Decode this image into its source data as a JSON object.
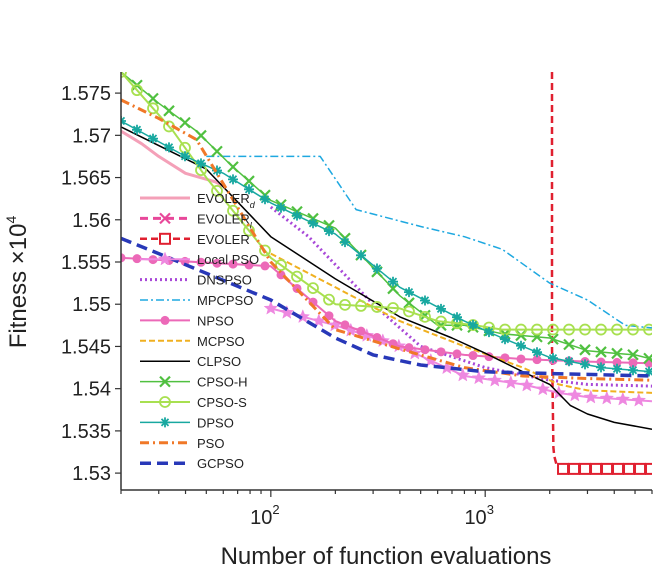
{
  "chart_data": {
    "type": "line",
    "title": "",
    "xlabel": "Number of function evaluations",
    "ylabel": "Fitness ×10",
    "ylabel_exponent": "4",
    "xscale": "log",
    "xlim": [
      20,
      6000
    ],
    "ylim": [
      1.528,
      1.5775
    ],
    "x_ticks": [
      {
        "value": 100,
        "base": "10",
        "exp": "2"
      },
      {
        "value": 1000,
        "base": "10",
        "exp": "3"
      }
    ],
    "y_ticks": [
      {
        "value": 1.53,
        "label": "1.53"
      },
      {
        "value": 1.535,
        "label": "1.535"
      },
      {
        "value": 1.54,
        "label": "1.54"
      },
      {
        "value": 1.545,
        "label": "1.545"
      },
      {
        "value": 1.55,
        "label": "1.55"
      },
      {
        "value": 1.555,
        "label": "1.555"
      },
      {
        "value": 1.56,
        "label": "1.56"
      },
      {
        "value": 1.565,
        "label": "1.565"
      },
      {
        "value": 1.57,
        "label": "1.57"
      },
      {
        "value": 1.575,
        "label": "1.575"
      }
    ],
    "legend_position": "left",
    "series": [
      {
        "name": "EVOLER",
        "sub": "d",
        "color": "#f4a0b8",
        "width": 3,
        "dash": "",
        "marker": "none",
        "x": [
          20,
          25,
          30,
          40,
          55,
          60
        ],
        "y": [
          1.5705,
          1.569,
          1.5675,
          1.5655,
          1.5645,
          1.564
        ]
      },
      {
        "name": "EVOLER",
        "sub": "l",
        "color": "#e8489a",
        "width": 3,
        "dash": "8 5",
        "marker": "x",
        "x": [],
        "y": []
      },
      {
        "name": "EVOLER",
        "sub": "",
        "color": "#e02030",
        "width": 2.5,
        "dash": "7 4",
        "marker": "square",
        "x": [
          2050,
          2050,
          2080,
          2100,
          2150,
          2300,
          2600,
          3000,
          3500,
          4000,
          4500,
          5000,
          5500,
          6000
        ],
        "y": [
          1.5775,
          1.545,
          1.533,
          1.532,
          1.531,
          1.5305,
          1.5305,
          1.5305,
          1.5305,
          1.5305,
          1.5305,
          1.5305,
          1.5305,
          1.5305
        ]
      },
      {
        "name": "Local PSO",
        "sub": "",
        "color": "#ee88e0",
        "width": 2,
        "dash": "",
        "marker": "star",
        "x": [
          100,
          200,
          400,
          800,
          1500,
          2200,
          3000,
          4000,
          6000
        ],
        "y": [
          1.5495,
          1.5475,
          1.545,
          1.5415,
          1.5405,
          1.5395,
          1.539,
          1.5388,
          1.5385
        ]
      },
      {
        "name": "DNSPSO",
        "sub": "",
        "color": "#a848d8",
        "width": 3,
        "dash": "2 3",
        "marker": "none",
        "x": [
          100,
          150,
          300,
          500,
          1000,
          2000,
          3000,
          6000
        ],
        "y": [
          1.5615,
          1.558,
          1.55,
          1.545,
          1.5425,
          1.541,
          1.5405,
          1.5403
        ]
      },
      {
        "name": "MPCPSO",
        "sub": "",
        "color": "#1ea8e0",
        "width": 1.5,
        "dash": "8 3 2 3",
        "marker": "none",
        "x": [
          50,
          170,
          250,
          500,
          800,
          1200,
          2000,
          3000,
          4500,
          6000
        ],
        "y": [
          1.5675,
          1.5675,
          1.5612,
          1.5592,
          1.558,
          1.5565,
          1.5525,
          1.5505,
          1.5475,
          1.5472
        ]
      },
      {
        "name": "NPSO",
        "sub": "",
        "color": "#ec69b8",
        "width": 2,
        "dash": "",
        "marker": "dot",
        "x": [
          20,
          100,
          200,
          400,
          800,
          1500,
          3000,
          6000
        ],
        "y": [
          1.5555,
          1.5545,
          1.548,
          1.545,
          1.544,
          1.5435,
          1.5432,
          1.543
        ]
      },
      {
        "name": "MCPSO",
        "sub": "",
        "color": "#f0b020",
        "width": 2,
        "dash": "6 3",
        "marker": "none",
        "x": [
          100,
          200,
          400,
          800,
          1500,
          2200,
          3000,
          6000
        ],
        "y": [
          1.556,
          1.552,
          1.548,
          1.545,
          1.5425,
          1.5405,
          1.5398,
          1.5395
        ]
      },
      {
        "name": "CLPSO",
        "sub": "",
        "color": "#000000",
        "width": 1.5,
        "dash": "",
        "marker": "none",
        "x": [
          20,
          50,
          100,
          200,
          400,
          700,
          1000,
          1500,
          2000,
          2500,
          3000,
          4000,
          6000
        ],
        "y": [
          1.571,
          1.566,
          1.558,
          1.553,
          1.5485,
          1.546,
          1.5442,
          1.542,
          1.5405,
          1.538,
          1.537,
          1.536,
          1.5352
        ]
      },
      {
        "name": "CPSO-H",
        "sub": "",
        "color": "#50c040",
        "width": 1.5,
        "dash": "",
        "marker": "x",
        "x": [
          20,
          30,
          45,
          65,
          100,
          200,
          400,
          600,
          800,
          1200,
          2000,
          3000,
          4000,
          5000,
          6000
        ],
        "y": [
          1.5775,
          1.5738,
          1.5705,
          1.5665,
          1.5623,
          1.559,
          1.551,
          1.5475,
          1.5475,
          1.5465,
          1.546,
          1.5445,
          1.5442,
          1.544,
          1.5435
        ]
      },
      {
        "name": "CPSO-S",
        "sub": "",
        "color": "#a8e050",
        "width": 2,
        "dash": "",
        "marker": "circle",
        "x": [
          20,
          35,
          50,
          100,
          200,
          400,
          600,
          900,
          1200,
          2000,
          3000,
          4000,
          6000
        ],
        "y": [
          1.5775,
          1.5705,
          1.565,
          1.5555,
          1.55,
          1.5495,
          1.548,
          1.5475,
          1.547,
          1.547,
          1.547,
          1.547,
          1.547
        ]
      },
      {
        "name": "DPSO",
        "sub": "",
        "color": "#18a8a0",
        "width": 1.5,
        "dash": "",
        "marker": "asterisk",
        "x": [
          20,
          40,
          60,
          100,
          200,
          400,
          800,
          1200,
          2000,
          2500,
          3500,
          6000
        ],
        "y": [
          1.5717,
          1.5675,
          1.5655,
          1.562,
          1.5583,
          1.552,
          1.548,
          1.546,
          1.5437,
          1.5432,
          1.5425,
          1.542
        ]
      },
      {
        "name": "PSO",
        "sub": "",
        "color": "#f07828",
        "width": 3,
        "dash": "9 4 2 4",
        "marker": "none",
        "x": [
          20,
          30,
          45,
          100,
          200,
          400,
          800,
          1500,
          3000,
          6000
        ],
        "y": [
          1.5742,
          1.572,
          1.5695,
          1.555,
          1.547,
          1.5447,
          1.5425,
          1.5415,
          1.5412,
          1.541
        ]
      },
      {
        "name": "GCPSO",
        "sub": "",
        "color": "#2838b8",
        "width": 3.5,
        "dash": "11 6",
        "marker": "none",
        "x": [
          20,
          30,
          100,
          200,
          300,
          500,
          1000,
          2000,
          6000
        ],
        "y": [
          1.5578,
          1.556,
          1.5505,
          1.546,
          1.544,
          1.5428,
          1.542,
          1.5418,
          1.5415
        ]
      }
    ]
  }
}
